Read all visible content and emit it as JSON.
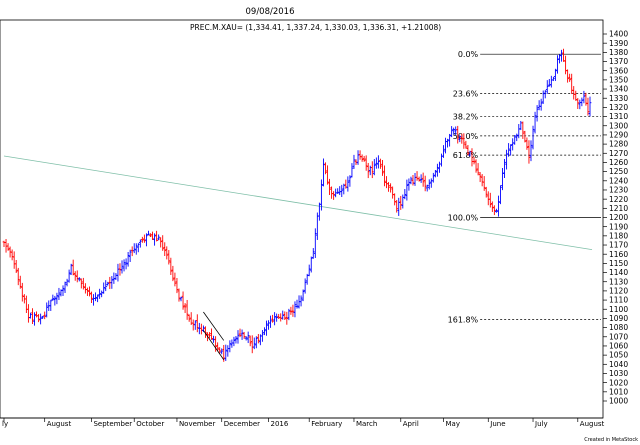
{
  "chart_data": {
    "type": "ohlc",
    "title": "09/08/2016",
    "subtitle": "PREC.M.XAU= (1,334.41, 1,337.24, 1,330.03, 1,336.31, +1.21008)",
    "credit": "Created in MetaStock",
    "ylim": [
      1000,
      1400
    ],
    "y_ticks": [
      1000,
      1010,
      1020,
      1030,
      1040,
      1050,
      1060,
      1070,
      1080,
      1090,
      1100,
      1110,
      1120,
      1130,
      1140,
      1150,
      1160,
      1170,
      1180,
      1190,
      1200,
      1210,
      1220,
      1230,
      1240,
      1250,
      1260,
      1270,
      1280,
      1290,
      1300,
      1310,
      1320,
      1330,
      1340,
      1350,
      1360,
      1370,
      1380,
      1390,
      1400
    ],
    "x_labels": [
      "ly",
      "August",
      "September",
      "October",
      "November",
      "December",
      "2016",
      "February",
      "March",
      "April",
      "May",
      "June",
      "July",
      "August"
    ],
    "x_label_bar_index": [
      0,
      20,
      43,
      64,
      85,
      107,
      130,
      150,
      172,
      195,
      216,
      238,
      260,
      282
    ],
    "bar_count": 289,
    "up_color": "#0000ff",
    "down_color": "#ff0000",
    "fib_levels": [
      {
        "label": "0.0%",
        "value": 1378
      },
      {
        "label": "23.6%",
        "value": 1335
      },
      {
        "label": "38.2%",
        "value": 1310
      },
      {
        "label": "50.0%",
        "value": 1289
      },
      {
        "label": "61.8%",
        "value": 1268
      },
      {
        "label": "100.0%",
        "value": 1200
      },
      {
        "label": "161.8%",
        "value": 1089
      }
    ],
    "fib_start_bar": 235,
    "trendline": {
      "start_bar": 0,
      "start_value": 1267,
      "end_bar": 289,
      "end_value": 1165,
      "color": "#7fbfa8"
    },
    "wedge": {
      "start_bar": 98,
      "end_bar": 108,
      "upper_start": 1097,
      "upper_end": 1066,
      "lower_start": 1077,
      "lower_end": 1045
    },
    "anchors": [
      [
        0,
        1172
      ],
      [
        4,
        1160
      ],
      [
        9,
        1118
      ],
      [
        12,
        1092
      ],
      [
        16,
        1090
      ],
      [
        19,
        1089
      ],
      [
        22,
        1105
      ],
      [
        26,
        1113
      ],
      [
        29,
        1122
      ],
      [
        33,
        1145
      ],
      [
        35,
        1138
      ],
      [
        38,
        1130
      ],
      [
        41,
        1120
      ],
      [
        44,
        1112
      ],
      [
        47,
        1116
      ],
      [
        51,
        1125
      ],
      [
        55,
        1138
      ],
      [
        58,
        1146
      ],
      [
        62,
        1160
      ],
      [
        65,
        1168
      ],
      [
        68,
        1176
      ],
      [
        71,
        1180
      ],
      [
        73,
        1178
      ],
      [
        76,
        1176
      ],
      [
        80,
        1160
      ],
      [
        83,
        1135
      ],
      [
        86,
        1115
      ],
      [
        89,
        1100
      ],
      [
        92,
        1088
      ],
      [
        95,
        1082
      ],
      [
        98,
        1080
      ],
      [
        101,
        1070
      ],
      [
        104,
        1062
      ],
      [
        106,
        1058
      ],
      [
        108,
        1050
      ],
      [
        111,
        1062
      ],
      [
        114,
        1072
      ],
      [
        117,
        1076
      ],
      [
        120,
        1068
      ],
      [
        122,
        1060
      ],
      [
        124,
        1066
      ],
      [
        127,
        1074
      ],
      [
        130,
        1085
      ],
      [
        134,
        1092
      ],
      [
        137,
        1090
      ],
      [
        140,
        1095
      ],
      [
        143,
        1102
      ],
      [
        146,
        1110
      ],
      [
        149,
        1135
      ],
      [
        152,
        1165
      ],
      [
        155,
        1215
      ],
      [
        157,
        1258
      ],
      [
        160,
        1228
      ],
      [
        163,
        1224
      ],
      [
        166,
        1232
      ],
      [
        169,
        1238
      ],
      [
        172,
        1260
      ],
      [
        175,
        1268
      ],
      [
        178,
        1255
      ],
      [
        181,
        1250
      ],
      [
        184,
        1262
      ],
      [
        187,
        1240
      ],
      [
        190,
        1230
      ],
      [
        193,
        1210
      ],
      [
        196,
        1220
      ],
      [
        199,
        1238
      ],
      [
        202,
        1242
      ],
      [
        205,
        1238
      ],
      [
        208,
        1232
      ],
      [
        211,
        1248
      ],
      [
        214,
        1258
      ],
      [
        217,
        1282
      ],
      [
        220,
        1298
      ],
      [
        223,
        1290
      ],
      [
        226,
        1280
      ],
      [
        229,
        1270
      ],
      [
        231,
        1258
      ],
      [
        234,
        1248
      ],
      [
        236,
        1230
      ],
      [
        238,
        1220
      ],
      [
        240,
        1212
      ],
      [
        242,
        1205
      ],
      [
        244,
        1230
      ],
      [
        246,
        1262
      ],
      [
        249,
        1280
      ],
      [
        252,
        1292
      ],
      [
        254,
        1302
      ],
      [
        256,
        1285
      ],
      [
        258,
        1262
      ],
      [
        261,
        1310
      ],
      [
        264,
        1325
      ],
      [
        267,
        1345
      ],
      [
        270,
        1352
      ],
      [
        272,
        1372
      ],
      [
        274,
        1378
      ],
      [
        276,
        1362
      ],
      [
        279,
        1340
      ],
      [
        282,
        1322
      ],
      [
        285,
        1330
      ],
      [
        287,
        1318
      ],
      [
        289,
        1336
      ]
    ]
  }
}
